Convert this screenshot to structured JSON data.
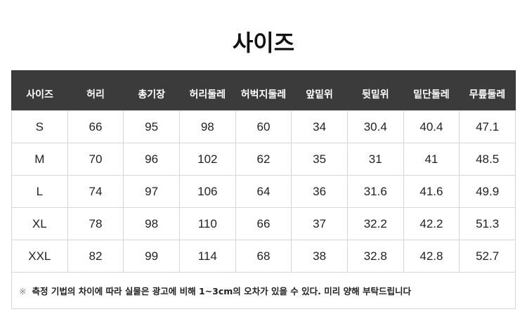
{
  "title": "사이즈",
  "columns": [
    "사이즈",
    "허리",
    "총기장",
    "허리둘레",
    "허벅지둘레",
    "앞밑위",
    "뒷밑위",
    "밑단둘레",
    "무릎둘레"
  ],
  "rows": [
    [
      "S",
      "66",
      "95",
      "98",
      "60",
      "34",
      "30.4",
      "40.4",
      "47.1"
    ],
    [
      "M",
      "70",
      "96",
      "102",
      "62",
      "35",
      "31",
      "41",
      "48.5"
    ],
    [
      "L",
      "74",
      "97",
      "106",
      "64",
      "36",
      "31.6",
      "41.6",
      "49.9"
    ],
    [
      "XL",
      "78",
      "98",
      "110",
      "66",
      "37",
      "32.2",
      "42.2",
      "51.3"
    ],
    [
      "XXL",
      "82",
      "99",
      "114",
      "68",
      "38",
      "32.8",
      "42.8",
      "52.7"
    ]
  ],
  "note": {
    "mark": "※",
    "text": "측정 기법의 차이에 따라 실물은 광고에 비해 1~3cm의 오차가 있을 수 있다. 미리 양해 부탁드립니다"
  }
}
